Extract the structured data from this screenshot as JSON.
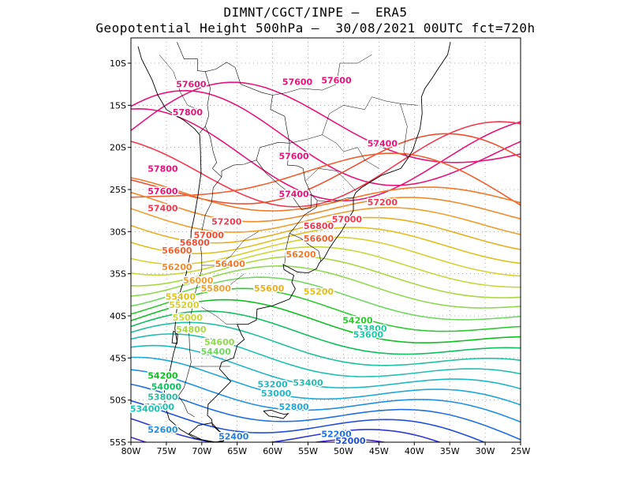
{
  "header": {
    "line1": "DIMNT/CGCT/INPE –  ERA5",
    "line2": "Geopotential Height 500hPa –  30/08/2021 00UTC fct=720h"
  },
  "map": {
    "lon_range": [
      -80,
      -25
    ],
    "lat_range": [
      -55,
      -7
    ],
    "lon_ticks": [
      "80W",
      "75W",
      "70W",
      "65W",
      "60W",
      "55W",
      "50W",
      "45W",
      "40W",
      "35W",
      "30W",
      "25W"
    ],
    "lat_ticks": [
      "10S",
      "15S",
      "20S",
      "25S",
      "30S",
      "35S",
      "40S",
      "45S",
      "50S",
      "55S"
    ],
    "grid": "dotted gray every 5 degrees",
    "contour_interval": 200,
    "contour_labels": [
      {
        "text": "57600",
        "lon": -71.5,
        "lat": -12.5,
        "color": "#e6157a"
      },
      {
        "text": "57600",
        "lon": -56.5,
        "lat": -12.2,
        "color": "#e6157a"
      },
      {
        "text": "57600",
        "lon": -51.0,
        "lat": -12.0,
        "color": "#e6157a"
      },
      {
        "text": "57800",
        "lon": -72.0,
        "lat": -15.8,
        "color": "#e6157a"
      },
      {
        "text": "57400",
        "lon": -44.5,
        "lat": -19.5,
        "color": "#e6157a"
      },
      {
        "text": "57600",
        "lon": -57.0,
        "lat": -21.0,
        "color": "#e6157a"
      },
      {
        "text": "57800",
        "lon": -75.5,
        "lat": -22.5,
        "color": "#e6157a"
      },
      {
        "text": "57600",
        "lon": -75.5,
        "lat": -25.2,
        "color": "#e6157a"
      },
      {
        "text": "57400",
        "lon": -57.0,
        "lat": -25.5,
        "color": "#e6157a"
      },
      {
        "text": "57400",
        "lon": -75.5,
        "lat": -27.2,
        "color": "#f03a50"
      },
      {
        "text": "57200",
        "lon": -44.5,
        "lat": -26.5,
        "color": "#f03a50"
      },
      {
        "text": "57200",
        "lon": -66.5,
        "lat": -28.8,
        "color": "#f03a50"
      },
      {
        "text": "57000",
        "lon": -49.5,
        "lat": -28.5,
        "color": "#f03a50"
      },
      {
        "text": "56800",
        "lon": -53.5,
        "lat": -29.3,
        "color": "#f03a50"
      },
      {
        "text": "57000",
        "lon": -69.0,
        "lat": -30.4,
        "color": "#f04e32"
      },
      {
        "text": "56800",
        "lon": -71.0,
        "lat": -31.3,
        "color": "#f04e32"
      },
      {
        "text": "56600",
        "lon": -53.5,
        "lat": -30.8,
        "color": "#f06030"
      },
      {
        "text": "56600",
        "lon": -73.5,
        "lat": -32.2,
        "color": "#f06030"
      },
      {
        "text": "56200",
        "lon": -56.0,
        "lat": -32.7,
        "color": "#f07a2a"
      },
      {
        "text": "56400",
        "lon": -66.0,
        "lat": -33.8,
        "color": "#f07a2a"
      },
      {
        "text": "56200",
        "lon": -73.5,
        "lat": -34.2,
        "color": "#f08a2a"
      },
      {
        "text": "56000",
        "lon": -70.5,
        "lat": -35.8,
        "color": "#f0a030"
      },
      {
        "text": "55800",
        "lon": -68.0,
        "lat": -36.7,
        "color": "#f0a030"
      },
      {
        "text": "55600",
        "lon": -60.5,
        "lat": -36.7,
        "color": "#e8b020"
      },
      {
        "text": "55400",
        "lon": -73.0,
        "lat": -37.7,
        "color": "#e0c020"
      },
      {
        "text": "55200",
        "lon": -53.5,
        "lat": -37.1,
        "color": "#e0c020"
      },
      {
        "text": "55200",
        "lon": -72.5,
        "lat": -38.7,
        "color": "#d8d030"
      },
      {
        "text": "55000",
        "lon": -72.0,
        "lat": -40.2,
        "color": "#c8d838"
      },
      {
        "text": "54800",
        "lon": -71.5,
        "lat": -41.6,
        "color": "#a8d840"
      },
      {
        "text": "54600",
        "lon": -67.5,
        "lat": -43.1,
        "color": "#90d850"
      },
      {
        "text": "54400",
        "lon": -68.0,
        "lat": -44.2,
        "color": "#70d860"
      },
      {
        "text": "54200",
        "lon": -48.0,
        "lat": -40.5,
        "color": "#30c830"
      },
      {
        "text": "53800",
        "lon": -46.0,
        "lat": -41.5,
        "color": "#20c8a0"
      },
      {
        "text": "53600",
        "lon": -46.5,
        "lat": -42.2,
        "color": "#20c8a8"
      },
      {
        "text": "54200",
        "lon": -75.5,
        "lat": -47.1,
        "color": "#10c020"
      },
      {
        "text": "54000",
        "lon": -75.0,
        "lat": -48.4,
        "color": "#10c060"
      },
      {
        "text": "53400",
        "lon": -55.0,
        "lat": -47.9,
        "color": "#20c0b0"
      },
      {
        "text": "53200",
        "lon": -60.0,
        "lat": -48.1,
        "color": "#20b8c0"
      },
      {
        "text": "53000",
        "lon": -59.5,
        "lat": -49.2,
        "color": "#20b8c8"
      },
      {
        "text": "53800",
        "lon": -75.5,
        "lat": -49.6,
        "color": "#20c0a0"
      },
      {
        "text": "53600",
        "lon": -76.0,
        "lat": -50.8,
        "color": "#20c0b0"
      },
      {
        "text": "52800",
        "lon": -57.0,
        "lat": -50.8,
        "color": "#20a8d8"
      },
      {
        "text": "53400",
        "lon": -78.0,
        "lat": -51.0,
        "color": "#20c0b0"
      },
      {
        "text": "52600",
        "lon": -75.5,
        "lat": -53.5,
        "color": "#2090e0"
      },
      {
        "text": "52400",
        "lon": -65.5,
        "lat": -54.3,
        "color": "#2080e0"
      },
      {
        "text": "52200",
        "lon": -51.0,
        "lat": -54.0,
        "color": "#2070e0"
      },
      {
        "text": "52000",
        "lon": -49.0,
        "lat": -54.8,
        "color": "#2050d8"
      }
    ],
    "colors": {
      "high": "#e6157a",
      "low": "#7a10d0",
      "boundaries": "#000000",
      "grid": "#9a9a9a"
    }
  }
}
